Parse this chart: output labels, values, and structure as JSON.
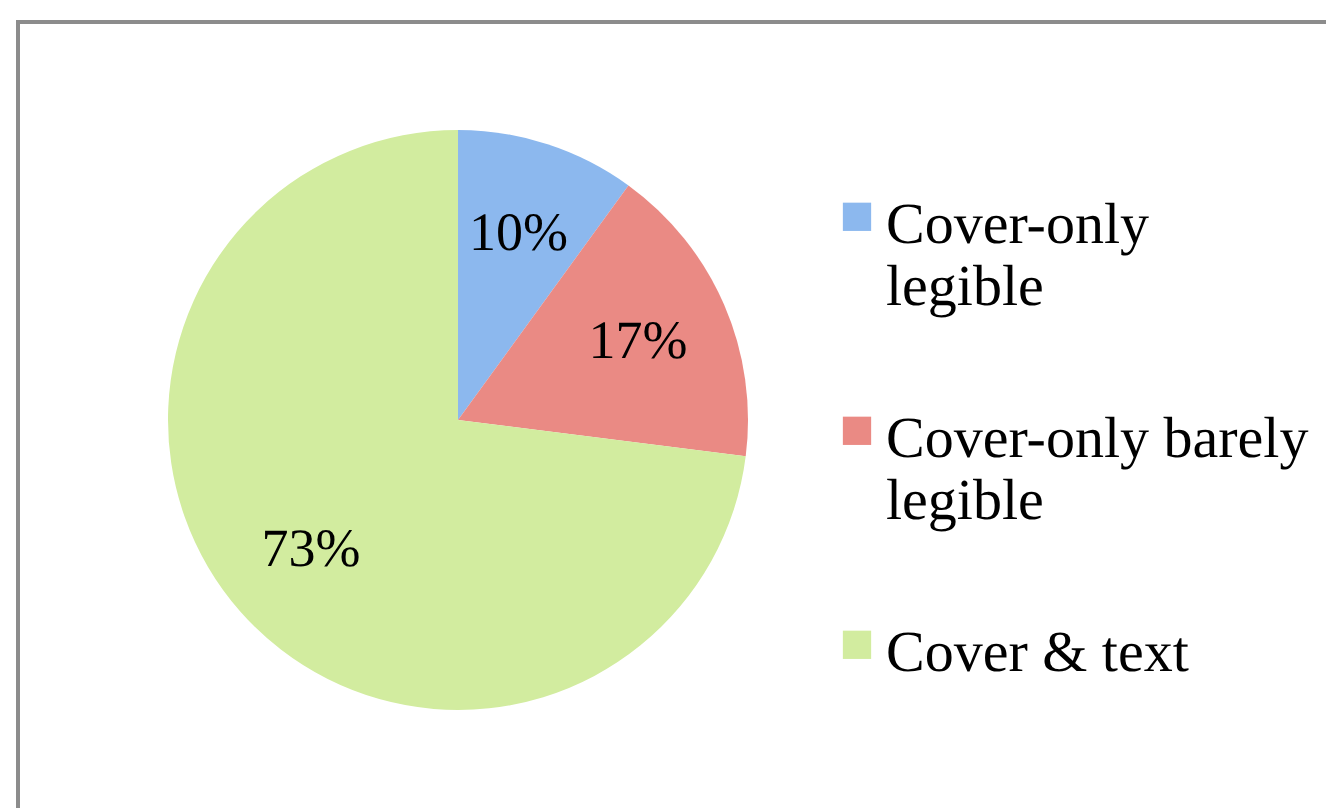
{
  "chart_data": {
    "type": "pie",
    "categories": [
      "Cover-only legible",
      "Cover-only barely legible",
      "Cover & text"
    ],
    "values": [
      10,
      17,
      73
    ],
    "colors": [
      "#8cb8ee",
      "#ea8a84",
      "#d2ec9f"
    ],
    "value_labels": [
      "10%",
      "17%",
      "73%"
    ],
    "legend": "right"
  }
}
